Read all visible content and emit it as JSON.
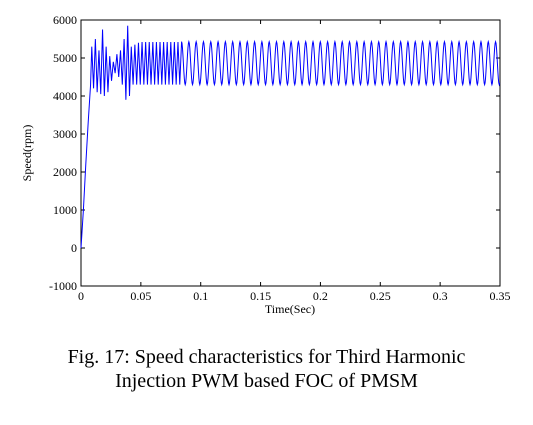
{
  "chart_data": {
    "type": "line",
    "title": "",
    "xlabel": "Time(Sec)",
    "ylabel": "Speed(rpm)",
    "xlim": [
      0,
      0.35
    ],
    "ylim": [
      -1000,
      6000
    ],
    "x_ticks": [
      0,
      0.05,
      0.1,
      0.15,
      0.2,
      0.25,
      0.3,
      0.35
    ],
    "x_tick_labels": [
      "0",
      "0.05",
      "0.1",
      "0.15",
      "0.2",
      "0.25",
      "0.3",
      "0.35"
    ],
    "y_ticks": [
      -1000,
      0,
      1000,
      2000,
      3000,
      4000,
      5000,
      6000
    ],
    "y_tick_labels": [
      "-1000",
      "0",
      "1000",
      "2000",
      "3000",
      "4000",
      "5000",
      "6000"
    ],
    "grid": false,
    "series": [
      {
        "color": "#0000ff",
        "x": [
          0,
          0.002,
          0.004,
          0.006,
          0.008,
          0.009,
          0.0105,
          0.012,
          0.0135,
          0.015,
          0.0165,
          0.018,
          0.0195,
          0.021,
          0.0225,
          0.024,
          0.0255,
          0.027,
          0.0285,
          0.03,
          0.0315,
          0.033,
          0.0345,
          0.036,
          0.0375,
          0.039,
          0.0405,
          0.042,
          0.0435,
          0.045,
          0.0465,
          0.048,
          0.0495,
          0.051,
          0.0525,
          0.054,
          0.0555,
          0.057,
          0.0585,
          0.06,
          0.0615,
          0.063,
          0.0645,
          0.066,
          0.0675,
          0.069,
          0.0705,
          0.072,
          0.0735,
          0.075,
          0.0765,
          0.078,
          0.0795,
          0.081,
          0.0825,
          0.084
        ],
        "y": [
          0,
          1000,
          2200,
          3300,
          4300,
          5300,
          4200,
          5500,
          4100,
          5200,
          4050,
          5750,
          4000,
          5300,
          4100,
          5050,
          4400,
          4900,
          4600,
          5100,
          4500,
          5200,
          4300,
          5500,
          3900,
          5850,
          4000,
          5300,
          4300,
          5350,
          4300,
          5400,
          4300,
          5420,
          4300,
          5420,
          4300,
          5420,
          4300,
          5420,
          4300,
          5420,
          4300,
          5420,
          4300,
          5420,
          4300,
          5420,
          4300,
          5420,
          4300,
          5420,
          4300,
          5420,
          4300,
          5420
        ],
        "steady_state": {
          "x_start": 0.084,
          "x_end": 0.35,
          "period": 0.0061,
          "min": 4300,
          "max": 5430
        }
      }
    ]
  },
  "caption": {
    "line1": "Fig. 17: Speed characteristics for Third Harmonic",
    "line2": "Injection PWM based FOC of PMSM"
  }
}
